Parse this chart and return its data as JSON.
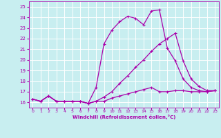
{
  "xlabel": "Windchill (Refroidissement éolien,°C)",
  "xlim": [
    -0.5,
    23.5
  ],
  "ylim": [
    15.5,
    25.5
  ],
  "yticks": [
    16,
    17,
    18,
    19,
    20,
    21,
    22,
    23,
    24,
    25
  ],
  "xticks": [
    0,
    1,
    2,
    3,
    4,
    5,
    6,
    7,
    8,
    9,
    10,
    11,
    12,
    13,
    14,
    15,
    16,
    17,
    18,
    19,
    20,
    21,
    22,
    23
  ],
  "bg_color": "#c8eef0",
  "grid_color": "#ffffff",
  "line_color": "#aa00aa",
  "line1_x": [
    0,
    1,
    2,
    3,
    4,
    5,
    6,
    7,
    8,
    9,
    10,
    11,
    12,
    13,
    14,
    15,
    16,
    17,
    18,
    19,
    20,
    21,
    22,
    23
  ],
  "line1_y": [
    16.3,
    16.1,
    16.6,
    16.1,
    16.1,
    16.1,
    16.1,
    15.9,
    16.1,
    16.1,
    16.4,
    16.6,
    16.8,
    17.0,
    17.2,
    17.4,
    17.0,
    17.0,
    17.1,
    17.1,
    17.0,
    17.0,
    17.0,
    17.1
  ],
  "line2_x": [
    0,
    1,
    2,
    3,
    4,
    5,
    6,
    7,
    8,
    9,
    10,
    11,
    12,
    13,
    14,
    15,
    16,
    17,
    18,
    19,
    20,
    21,
    22,
    23
  ],
  "line2_y": [
    16.3,
    16.1,
    16.6,
    16.1,
    16.1,
    16.1,
    16.1,
    15.9,
    17.4,
    21.5,
    22.8,
    23.6,
    24.1,
    23.9,
    23.3,
    24.6,
    24.7,
    21.1,
    19.9,
    18.2,
    17.4,
    17.1,
    17.0,
    17.1
  ],
  "line3_x": [
    0,
    1,
    2,
    3,
    4,
    5,
    6,
    7,
    8,
    9,
    10,
    11,
    12,
    13,
    14,
    15,
    16,
    17,
    18,
    19,
    20,
    21,
    22,
    23
  ],
  "line3_y": [
    16.3,
    16.1,
    16.6,
    16.1,
    16.1,
    16.1,
    16.1,
    15.9,
    16.1,
    16.5,
    17.0,
    17.8,
    18.5,
    19.3,
    20.0,
    20.8,
    21.5,
    22.0,
    22.5,
    19.9,
    18.2,
    17.5,
    17.1,
    17.1
  ]
}
